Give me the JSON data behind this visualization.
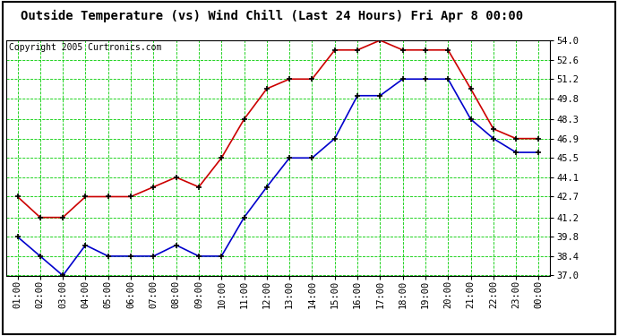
{
  "title": "Outside Temperature (vs) Wind Chill (Last 24 Hours) Fri Apr 8 00:00",
  "copyright": "Copyright 2005 Curtronics.com",
  "x_labels": [
    "01:00",
    "02:00",
    "03:00",
    "04:00",
    "05:00",
    "06:00",
    "07:00",
    "08:00",
    "09:00",
    "10:00",
    "11:00",
    "12:00",
    "13:00",
    "14:00",
    "15:00",
    "16:00",
    "17:00",
    "18:00",
    "19:00",
    "20:00",
    "21:00",
    "22:00",
    "23:00",
    "00:00"
  ],
  "red_data": [
    42.7,
    41.2,
    41.2,
    42.7,
    42.7,
    42.7,
    43.4,
    44.1,
    43.4,
    45.5,
    48.3,
    50.5,
    51.2,
    51.2,
    53.3,
    53.3,
    54.0,
    53.3,
    53.3,
    53.3,
    50.5,
    47.6,
    46.9,
    46.9
  ],
  "blue_data": [
    39.8,
    38.4,
    37.0,
    39.2,
    38.4,
    38.4,
    38.4,
    39.2,
    38.4,
    38.4,
    41.2,
    43.4,
    45.5,
    45.5,
    46.9,
    50.0,
    50.0,
    51.2,
    51.2,
    51.2,
    48.3,
    46.9,
    45.9,
    45.9
  ],
  "ylim_min": 37.0,
  "ylim_max": 54.0,
  "yticks": [
    37.0,
    38.4,
    39.8,
    41.2,
    42.7,
    44.1,
    45.5,
    46.9,
    48.3,
    49.8,
    51.2,
    52.6,
    54.0
  ],
  "red_color": "#cc0000",
  "blue_color": "#0000cc",
  "grid_color": "#00cc00",
  "bg_color": "#ffffff",
  "border_color": "#000000",
  "title_fontsize": 10,
  "copyright_fontsize": 7,
  "tick_fontsize": 7.5
}
